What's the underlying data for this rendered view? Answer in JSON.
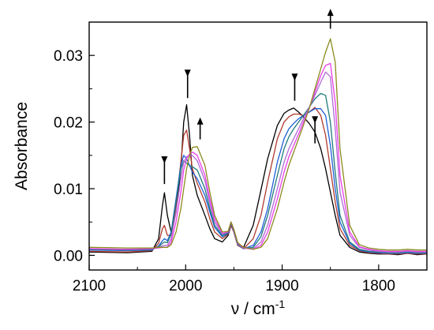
{
  "chart_data": {
    "type": "line",
    "xlabel": "ν / cm",
    "xlabel_sup": "-1",
    "ylabel": "Absorbance",
    "xlim": [
      2100,
      1750
    ],
    "ylim": [
      -0.0022,
      0.035
    ],
    "x_ticks": [
      2100,
      2000,
      1900,
      1800
    ],
    "x_tick_labels": [
      "2100",
      "2000",
      "1900",
      "1800"
    ],
    "y_ticks": [
      0.0,
      0.01,
      0.02,
      0.03
    ],
    "y_tick_labels": [
      "0.00",
      "0.01",
      "0.02",
      "0.03"
    ],
    "grid": false,
    "annotations": [
      {
        "type": "arrow",
        "direction": "down",
        "x": 2022,
        "y_from": 0.0138,
        "y_to": 0.0107
      },
      {
        "type": "arrow",
        "direction": "down",
        "x": 1998,
        "y_from": 0.0268,
        "y_to": 0.0236
      },
      {
        "type": "arrow",
        "direction": "up",
        "x": 1985,
        "y_from": 0.0174,
        "y_to": 0.0207
      },
      {
        "type": "arrow",
        "direction": "down",
        "x": 1887,
        "y_from": 0.0262,
        "y_to": 0.0232
      },
      {
        "type": "arrow",
        "direction": "down",
        "x": 1866,
        "y_from": 0.0198,
        "y_to": 0.0168
      },
      {
        "type": "arrow",
        "direction": "up",
        "x": 1850,
        "y_from": 0.034,
        "y_to": 0.037
      }
    ],
    "series": [
      {
        "color": "#000000",
        "x": [
          2100,
          2060,
          2035,
          2028,
          2024,
          2022,
          2019,
          2015,
          2010,
          2005,
          2002,
          1999,
          1996,
          1993,
          1988,
          1980,
          1975,
          1970,
          1962,
          1956,
          1953,
          1950,
          1946,
          1940,
          1930,
          1922,
          1915,
          1905,
          1898,
          1893,
          1888,
          1883,
          1878,
          1872,
          1866,
          1860,
          1855,
          1850,
          1845,
          1840,
          1830,
          1820,
          1810,
          1800,
          1790,
          1780,
          1770,
          1760,
          1750
        ],
        "y": [
          0.0005,
          0.0004,
          0.0006,
          0.0025,
          0.0075,
          0.0094,
          0.006,
          0.0035,
          0.0065,
          0.013,
          0.02,
          0.0226,
          0.018,
          0.012,
          0.009,
          0.006,
          0.004,
          0.0025,
          0.002,
          0.003,
          0.0045,
          0.0035,
          0.0015,
          0.0012,
          0.0045,
          0.0098,
          0.0145,
          0.0195,
          0.0213,
          0.0218,
          0.0221,
          0.0215,
          0.0208,
          0.0198,
          0.0185,
          0.016,
          0.013,
          0.0095,
          0.006,
          0.003,
          0.0012,
          0.0005,
          0.0003,
          0.0002,
          0.0002,
          0.0001,
          0.0003,
          0.0001,
          0.0002
        ]
      },
      {
        "color": "#b03a2e",
        "x": [
          2100,
          2060,
          2035,
          2028,
          2024,
          2022,
          2019,
          2015,
          2010,
          2005,
          2002,
          1999,
          1996,
          1993,
          1988,
          1980,
          1975,
          1970,
          1962,
          1956,
          1953,
          1950,
          1946,
          1940,
          1930,
          1922,
          1915,
          1905,
          1898,
          1893,
          1888,
          1883,
          1878,
          1872,
          1866,
          1860,
          1855,
          1850,
          1845,
          1840,
          1830,
          1820,
          1810,
          1800,
          1790,
          1780,
          1770,
          1760,
          1750
        ],
        "y": [
          0.0006,
          0.0005,
          0.0007,
          0.0018,
          0.004,
          0.0045,
          0.003,
          0.003,
          0.0075,
          0.014,
          0.018,
          0.0188,
          0.016,
          0.013,
          0.0108,
          0.008,
          0.0055,
          0.0035,
          0.0025,
          0.0032,
          0.0045,
          0.0035,
          0.0015,
          0.001,
          0.0025,
          0.006,
          0.011,
          0.0175,
          0.02,
          0.0208,
          0.0212,
          0.0212,
          0.021,
          0.0215,
          0.0222,
          0.021,
          0.018,
          0.013,
          0.008,
          0.004,
          0.0015,
          0.0007,
          0.0004,
          0.0003,
          0.0002,
          0.0002,
          0.0003,
          0.0002,
          0.0002
        ]
      },
      {
        "color": "#1f5fd6",
        "x": [
          2100,
          2060,
          2035,
          2028,
          2024,
          2022,
          2019,
          2015,
          2010,
          2005,
          2002,
          1999,
          1996,
          1993,
          1988,
          1980,
          1975,
          1970,
          1962,
          1956,
          1953,
          1950,
          1946,
          1940,
          1930,
          1922,
          1915,
          1905,
          1898,
          1893,
          1888,
          1883,
          1878,
          1872,
          1866,
          1860,
          1855,
          1850,
          1845,
          1840,
          1830,
          1820,
          1810,
          1800,
          1790,
          1780,
          1770,
          1760,
          1750
        ],
        "y": [
          0.0008,
          0.0007,
          0.0008,
          0.0014,
          0.0022,
          0.0025,
          0.0022,
          0.0035,
          0.0085,
          0.0135,
          0.015,
          0.0145,
          0.0135,
          0.0125,
          0.0115,
          0.009,
          0.0065,
          0.0042,
          0.0028,
          0.0033,
          0.0048,
          0.0036,
          0.0016,
          0.001,
          0.0015,
          0.0035,
          0.007,
          0.014,
          0.0175,
          0.019,
          0.0198,
          0.0205,
          0.021,
          0.0215,
          0.022,
          0.022,
          0.021,
          0.0165,
          0.01,
          0.005,
          0.0018,
          0.0008,
          0.0005,
          0.0004,
          0.0003,
          0.0003,
          0.0004,
          0.0003,
          0.0003
        ]
      },
      {
        "color": "#1f7a7a",
        "x": [
          2100,
          2060,
          2035,
          2028,
          2024,
          2022,
          2019,
          2015,
          2010,
          2005,
          2002,
          1999,
          1996,
          1993,
          1988,
          1980,
          1975,
          1970,
          1962,
          1956,
          1953,
          1950,
          1946,
          1940,
          1930,
          1922,
          1915,
          1905,
          1898,
          1893,
          1888,
          1883,
          1878,
          1872,
          1866,
          1860,
          1855,
          1850,
          1845,
          1840,
          1830,
          1820,
          1810,
          1800,
          1790,
          1780,
          1770,
          1760,
          1750
        ],
        "y": [
          0.0009,
          0.0008,
          0.0009,
          0.0013,
          0.0018,
          0.002,
          0.0019,
          0.0032,
          0.008,
          0.013,
          0.0142,
          0.0138,
          0.0135,
          0.0133,
          0.0128,
          0.01,
          0.007,
          0.0045,
          0.003,
          0.0034,
          0.0049,
          0.0037,
          0.0017,
          0.001,
          0.0012,
          0.0028,
          0.006,
          0.012,
          0.016,
          0.0178,
          0.019,
          0.02,
          0.021,
          0.0222,
          0.0235,
          0.0243,
          0.024,
          0.02,
          0.0125,
          0.006,
          0.002,
          0.0009,
          0.0006,
          0.0005,
          0.0004,
          0.0004,
          0.0005,
          0.0004,
          0.0004
        ]
      },
      {
        "color": "#b06ad6",
        "x": [
          2100,
          2060,
          2035,
          2028,
          2024,
          2022,
          2019,
          2015,
          2010,
          2005,
          2002,
          1999,
          1996,
          1993,
          1988,
          1980,
          1975,
          1970,
          1962,
          1956,
          1953,
          1950,
          1946,
          1940,
          1930,
          1922,
          1915,
          1905,
          1898,
          1893,
          1888,
          1883,
          1878,
          1872,
          1866,
          1860,
          1855,
          1850,
          1845,
          1840,
          1830,
          1820,
          1810,
          1800,
          1790,
          1780,
          1770,
          1760,
          1750
        ],
        "y": [
          0.001,
          0.0009,
          0.001,
          0.0012,
          0.0014,
          0.0015,
          0.0015,
          0.0025,
          0.0065,
          0.0115,
          0.014,
          0.0148,
          0.015,
          0.015,
          0.0142,
          0.0112,
          0.0078,
          0.005,
          0.0032,
          0.0035,
          0.005,
          0.0038,
          0.0018,
          0.0011,
          0.001,
          0.002,
          0.0045,
          0.01,
          0.014,
          0.016,
          0.0175,
          0.019,
          0.0205,
          0.0222,
          0.024,
          0.026,
          0.0275,
          0.0268,
          0.019,
          0.0095,
          0.003,
          0.0012,
          0.0008,
          0.0006,
          0.0005,
          0.0005,
          0.0006,
          0.0005,
          0.0005
        ]
      },
      {
        "color": "#e83fe8",
        "x": [
          2100,
          2060,
          2035,
          2028,
          2024,
          2022,
          2019,
          2015,
          2010,
          2005,
          2002,
          1999,
          1996,
          1993,
          1988,
          1980,
          1975,
          1970,
          1962,
          1956,
          1953,
          1950,
          1946,
          1940,
          1930,
          1922,
          1915,
          1905,
          1898,
          1893,
          1888,
          1883,
          1878,
          1872,
          1866,
          1860,
          1855,
          1850,
          1845,
          1840,
          1830,
          1820,
          1810,
          1800,
          1790,
          1780,
          1770,
          1760,
          1750
        ],
        "y": [
          0.001,
          0.0009,
          0.001,
          0.0011,
          0.0012,
          0.0012,
          0.0012,
          0.002,
          0.005,
          0.0095,
          0.0128,
          0.0145,
          0.0152,
          0.0155,
          0.015,
          0.012,
          0.0085,
          0.0055,
          0.0033,
          0.0035,
          0.005,
          0.0038,
          0.0018,
          0.0011,
          0.0009,
          0.0015,
          0.0035,
          0.0085,
          0.0125,
          0.0148,
          0.0165,
          0.0182,
          0.02,
          0.022,
          0.0245,
          0.027,
          0.0285,
          0.0288,
          0.023,
          0.012,
          0.0035,
          0.0013,
          0.0009,
          0.0007,
          0.0006,
          0.0006,
          0.0007,
          0.0006,
          0.0006
        ]
      },
      {
        "color": "#8b8a1e",
        "x": [
          2100,
          2060,
          2035,
          2028,
          2024,
          2022,
          2019,
          2015,
          2010,
          2005,
          2002,
          1999,
          1996,
          1993,
          1988,
          1980,
          1975,
          1970,
          1962,
          1956,
          1953,
          1950,
          1946,
          1940,
          1930,
          1922,
          1915,
          1905,
          1898,
          1893,
          1888,
          1883,
          1878,
          1872,
          1866,
          1860,
          1855,
          1850,
          1845,
          1840,
          1830,
          1820,
          1810,
          1800,
          1790,
          1780,
          1770,
          1760,
          1750
        ],
        "y": [
          0.0012,
          0.0011,
          0.0011,
          0.0012,
          0.0012,
          0.0012,
          0.0012,
          0.0016,
          0.0035,
          0.007,
          0.01,
          0.013,
          0.015,
          0.0162,
          0.0163,
          0.0135,
          0.0095,
          0.006,
          0.0035,
          0.0036,
          0.005,
          0.0039,
          0.0019,
          0.0012,
          0.0009,
          0.0012,
          0.0025,
          0.007,
          0.011,
          0.0135,
          0.0155,
          0.0175,
          0.0195,
          0.022,
          0.025,
          0.028,
          0.0305,
          0.0325,
          0.029,
          0.016,
          0.0045,
          0.0016,
          0.0011,
          0.0009,
          0.0008,
          0.0008,
          0.0009,
          0.0008,
          0.0008
        ]
      }
    ]
  }
}
